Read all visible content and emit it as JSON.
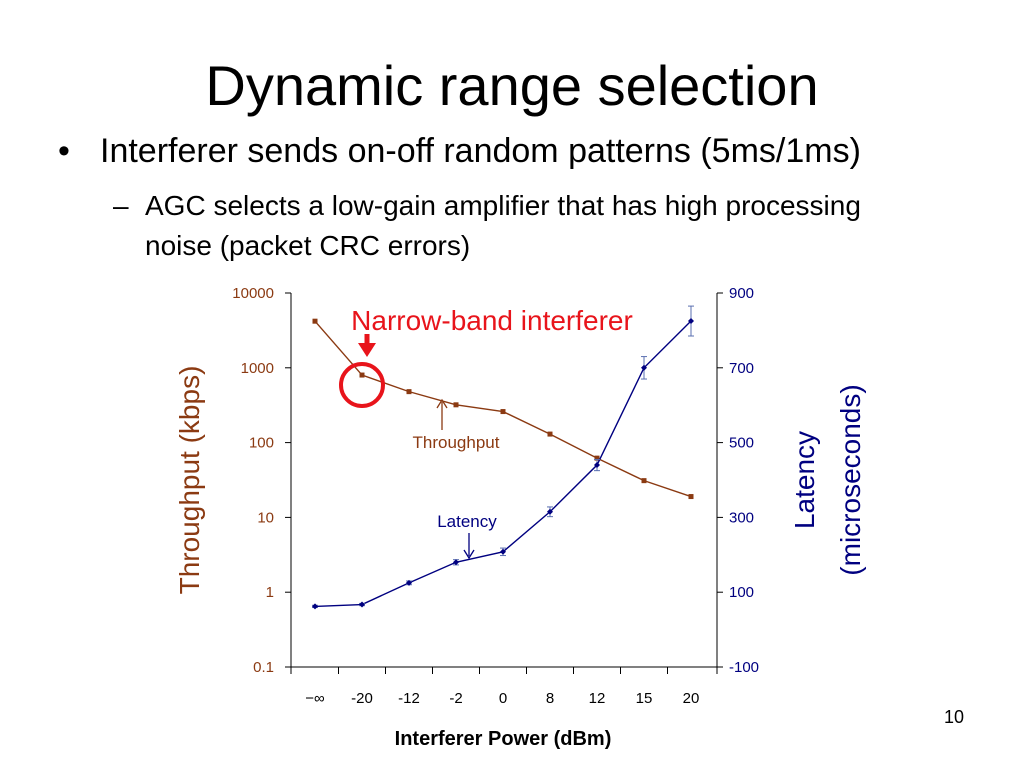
{
  "slide": {
    "title": "Dynamic range selection",
    "bullet_marker": "•",
    "bullet": "Interferer sends on-off random patterns (5ms/1ms)",
    "sub_marker": "–",
    "sub_bullet": "AGC selects a low-gain amplifier that has high processing noise (packet CRC errors)",
    "page_number": "10"
  },
  "colors": {
    "throughput": "#8B3A12",
    "latency": "#000080",
    "highlight": "#E8141B",
    "axis": "#000000"
  },
  "chart_data": {
    "type": "line",
    "categories": [
      "−∞",
      "-20",
      "-12",
      "-2",
      "0",
      "8",
      "12",
      "15",
      "20"
    ],
    "xlabel": "Interferer Power (dBm)",
    "ylabel_left": "Throughput (kbps)",
    "ylabel_right_line1": "Latency",
    "ylabel_right_line2": "(microseconds)",
    "left_axis": {
      "scale": "log",
      "ylim": [
        0.1,
        10000
      ],
      "ticks": [
        0.1,
        1,
        10,
        100,
        1000,
        10000
      ],
      "tick_labels": [
        "0.1",
        "1",
        "10",
        "100",
        "1000",
        "10000"
      ]
    },
    "right_axis": {
      "scale": "linear",
      "ylim": [
        -100,
        900
      ],
      "ticks": [
        -100,
        100,
        300,
        500,
        700,
        900
      ],
      "tick_labels": [
        "-100",
        "100",
        "300",
        "500",
        "700",
        "900"
      ]
    },
    "series": [
      {
        "name": "Throughput",
        "axis": "left",
        "values": [
          4200,
          800,
          480,
          320,
          260,
          130,
          62,
          31,
          19
        ]
      },
      {
        "name": "Latency",
        "axis": "right",
        "values": [
          62,
          67,
          125,
          180,
          208,
          315,
          440,
          700,
          825
        ],
        "error": [
          3,
          3,
          5,
          7,
          10,
          13,
          15,
          30,
          40
        ]
      }
    ],
    "annotations": {
      "narrow_band": "Narrow-band interferer",
      "throughput_label": "Throughput",
      "latency_label": "Latency"
    },
    "grid": false,
    "legend": "none"
  }
}
